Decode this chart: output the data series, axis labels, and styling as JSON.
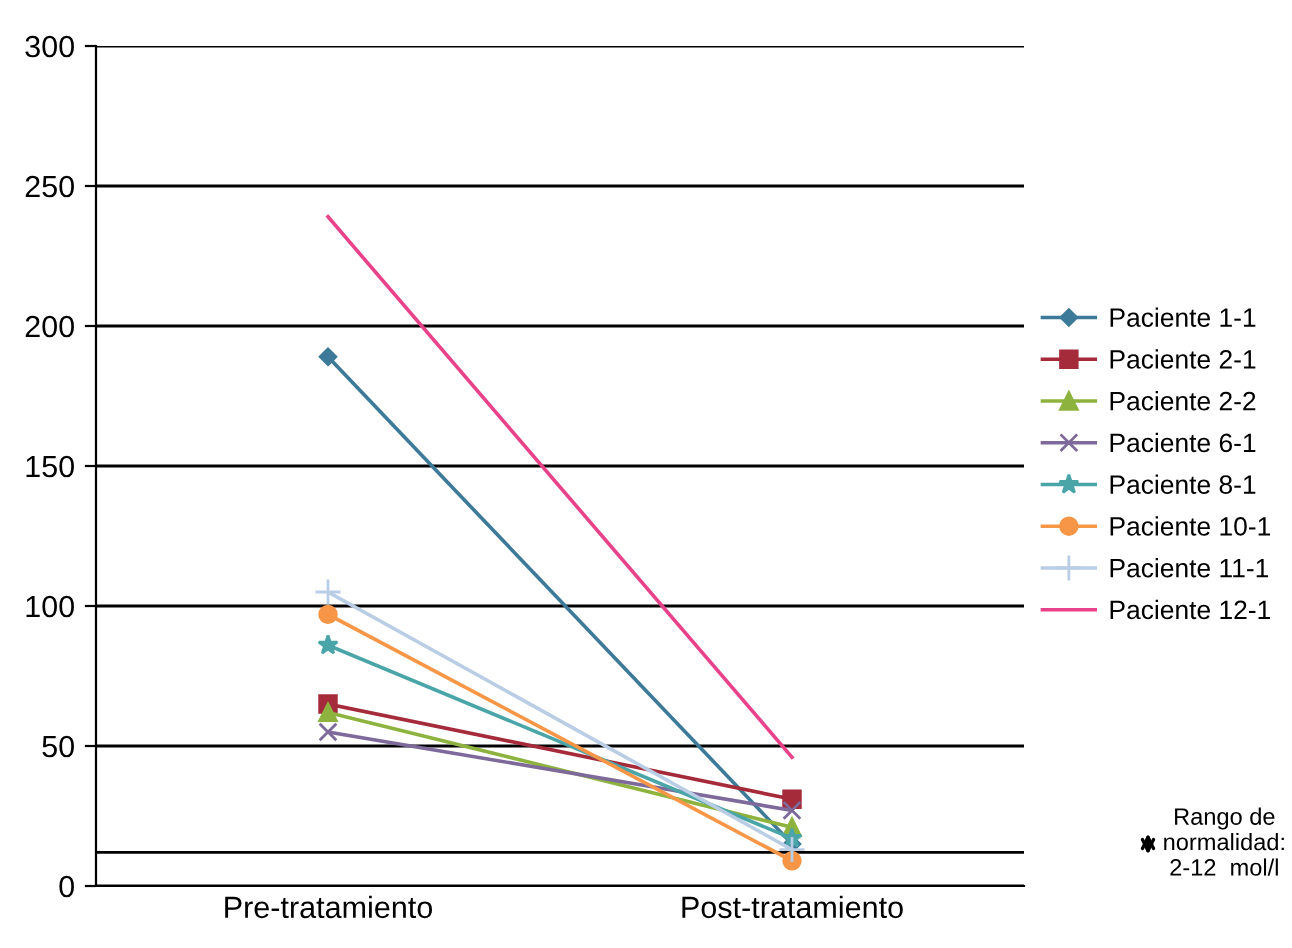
{
  "chart_data": {
    "type": "line",
    "categories": [
      "Pre-tratamiento",
      "Post-tratamiento"
    ],
    "series": [
      {
        "name": "Paciente 1-1",
        "color": "#3d7a99",
        "marker": "diamond",
        "values": [
          189,
          15
        ]
      },
      {
        "name": "Paciente 2-1",
        "color": "#a52a3a",
        "marker": "square",
        "values": [
          65,
          31
        ]
      },
      {
        "name": "Paciente 2-2",
        "color": "#8db33e",
        "marker": "triangle",
        "values": [
          62,
          21
        ]
      },
      {
        "name": "Paciente 6-1",
        "color": "#7d6a9a",
        "marker": "cross",
        "values": [
          55,
          27
        ]
      },
      {
        "name": "Paciente 8-1",
        "color": "#4aa5a8",
        "marker": "star",
        "values": [
          86,
          17
        ]
      },
      {
        "name": "Paciente 10-1",
        "color": "#f79646",
        "marker": "circle",
        "values": [
          97,
          9
        ]
      },
      {
        "name": "Paciente 11-1",
        "color": "#b9cde5",
        "marker": "plus",
        "values": [
          105,
          13
        ]
      },
      {
        "name": "Paciente 12-1",
        "color": "#e8438a",
        "marker": "none",
        "values": [
          239,
          46
        ]
      }
    ],
    "ylim": [
      0,
      300
    ],
    "yticks": [
      0,
      50,
      100,
      150,
      200,
      250,
      300
    ],
    "grid": "y",
    "legend": "right",
    "ref_lines": [
      {
        "axis": "y",
        "value": 12,
        "color": "#000000"
      }
    ],
    "annotations": [
      "Rango de\nnormalidad:\n2-12  mol/l"
    ]
  }
}
